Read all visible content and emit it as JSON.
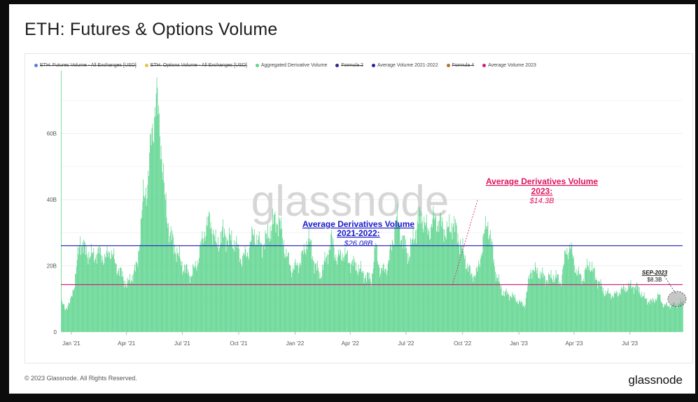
{
  "page": {
    "title": "ETH: Futures & Options Volume",
    "copyright": "© 2023 Glassnode. All Rights Reserved.",
    "brand": "glassnode",
    "watermark": "glassnode"
  },
  "legend": [
    {
      "label": "ETH: Futures Volume - All Exchanges [USD]",
      "color": "#5b7fd6",
      "disabled": true
    },
    {
      "label": "ETH: Options Volume - All Exchanges [USD]",
      "color": "#e8c14a",
      "disabled": true
    },
    {
      "label": "Aggregated Derivative Volume",
      "color": "#5fd58f",
      "disabled": false
    },
    {
      "label": "Formula 2",
      "color": "#2a2a8a",
      "disabled": true
    },
    {
      "label": "Average Volume 2021-2022",
      "color": "#1f1fa0",
      "disabled": false
    },
    {
      "label": "Formula 4",
      "color": "#b5702e",
      "disabled": true
    },
    {
      "label": "Average Volume 2023",
      "color": "#d11a7f",
      "disabled": false
    }
  ],
  "annotations": {
    "avg2122": {
      "line1": "Average Derivatives Volume",
      "line2": "2021-2022:",
      "value": "$26.08B"
    },
    "avg23": {
      "line1": "Average Derivatives Volume",
      "line2": "2023:",
      "value": "$14.3B"
    },
    "sep23": {
      "label": "SEP-2023",
      "value": "$8.3B"
    }
  },
  "chart_data": {
    "type": "bar",
    "y_ticks": [
      "0",
      "20B",
      "40B",
      "60B"
    ],
    "x_ticks": [
      "Jan '21",
      "Apr '21",
      "Jul '21",
      "Oct '21",
      "Jan '22",
      "Apr '22",
      "Jul '22",
      "Oct '22",
      "Jan '23",
      "Apr '23",
      "Jul '23"
    ],
    "ylim": [
      0,
      80
    ],
    "x_range": [
      "2020-12-15",
      "2023-09-25"
    ],
    "reference_lines": [
      {
        "name": "Average Volume 2021-2022",
        "value": 26.08,
        "color": "#2c2cc0"
      },
      {
        "name": "Average Volume 2023",
        "value": 14.3,
        "color": "#d11a7f"
      }
    ],
    "series": [
      {
        "name": "Aggregated Derivative Volume",
        "color": "#5fd58f",
        "unit": "B USD",
        "points": [
          [
            "2020-12-15",
            9
          ],
          [
            "2020-12-22",
            7
          ],
          [
            "2020-12-30",
            9
          ],
          [
            "2021-01-06",
            15
          ],
          [
            "2021-01-15",
            28
          ],
          [
            "2021-01-25",
            24
          ],
          [
            "2021-02-05",
            23
          ],
          [
            "2021-02-15",
            24
          ],
          [
            "2021-02-25",
            22
          ],
          [
            "2021-03-05",
            25
          ],
          [
            "2021-03-15",
            20
          ],
          [
            "2021-03-25",
            17
          ],
          [
            "2021-04-01",
            14
          ],
          [
            "2021-04-10",
            17
          ],
          [
            "2021-04-18",
            20
          ],
          [
            "2021-04-28",
            40
          ],
          [
            "2021-05-05",
            45
          ],
          [
            "2021-05-12",
            60
          ],
          [
            "2021-05-19",
            71
          ],
          [
            "2021-05-26",
            60
          ],
          [
            "2021-06-02",
            40
          ],
          [
            "2021-06-10",
            30
          ],
          [
            "2021-06-20",
            25
          ],
          [
            "2021-07-01",
            20
          ],
          [
            "2021-07-15",
            17
          ],
          [
            "2021-07-25",
            21
          ],
          [
            "2021-08-05",
            30
          ],
          [
            "2021-08-15",
            34
          ],
          [
            "2021-08-25",
            26
          ],
          [
            "2021-09-05",
            30
          ],
          [
            "2021-09-15",
            28
          ],
          [
            "2021-09-25",
            27
          ],
          [
            "2021-10-05",
            22
          ],
          [
            "2021-10-15",
            24
          ],
          [
            "2021-10-25",
            30
          ],
          [
            "2021-11-05",
            26
          ],
          [
            "2021-11-15",
            28
          ],
          [
            "2021-11-25",
            33
          ],
          [
            "2021-12-05",
            34
          ],
          [
            "2021-12-15",
            25
          ],
          [
            "2021-12-25",
            19
          ],
          [
            "2022-01-05",
            20
          ],
          [
            "2022-01-15",
            24
          ],
          [
            "2022-01-22",
            29
          ],
          [
            "2022-02-01",
            21
          ],
          [
            "2022-02-10",
            17
          ],
          [
            "2022-02-20",
            22
          ],
          [
            "2022-03-01",
            28
          ],
          [
            "2022-03-10",
            22
          ],
          [
            "2022-03-20",
            24
          ],
          [
            "2022-04-01",
            21
          ],
          [
            "2022-04-10",
            20
          ],
          [
            "2022-04-25",
            17
          ],
          [
            "2022-05-05",
            16
          ],
          [
            "2022-05-12",
            26
          ],
          [
            "2022-05-20",
            18
          ],
          [
            "2022-06-01",
            20
          ],
          [
            "2022-06-15",
            34
          ],
          [
            "2022-06-25",
            28
          ],
          [
            "2022-07-05",
            23
          ],
          [
            "2022-07-15",
            30
          ],
          [
            "2022-07-25",
            36
          ],
          [
            "2022-08-05",
            30
          ],
          [
            "2022-08-15",
            34
          ],
          [
            "2022-08-25",
            33
          ],
          [
            "2022-09-05",
            30
          ],
          [
            "2022-09-15",
            33
          ],
          [
            "2022-09-25",
            28
          ],
          [
            "2022-10-05",
            22
          ],
          [
            "2022-10-15",
            17
          ],
          [
            "2022-10-25",
            18
          ],
          [
            "2022-11-01",
            25
          ],
          [
            "2022-11-10",
            34
          ],
          [
            "2022-11-18",
            25
          ],
          [
            "2022-11-25",
            17
          ],
          [
            "2022-12-05",
            12
          ],
          [
            "2022-12-20",
            11
          ],
          [
            "2023-01-01",
            9
          ],
          [
            "2023-01-10",
            8
          ],
          [
            "2023-01-20",
            19
          ],
          [
            "2023-02-01",
            18
          ],
          [
            "2023-02-15",
            16
          ],
          [
            "2023-03-01",
            17
          ],
          [
            "2023-03-10",
            15
          ],
          [
            "2023-03-18",
            24
          ],
          [
            "2023-03-25",
            26
          ],
          [
            "2023-04-05",
            18
          ],
          [
            "2023-04-15",
            16
          ],
          [
            "2023-04-25",
            21
          ],
          [
            "2023-05-05",
            17
          ],
          [
            "2023-05-20",
            12
          ],
          [
            "2023-06-05",
            11
          ],
          [
            "2023-06-20",
            13
          ],
          [
            "2023-07-05",
            14
          ],
          [
            "2023-07-15",
            13
          ],
          [
            "2023-07-25",
            10
          ],
          [
            "2023-08-05",
            9
          ],
          [
            "2023-08-17",
            11
          ],
          [
            "2023-08-25",
            8
          ],
          [
            "2023-09-05",
            8
          ],
          [
            "2023-09-15",
            8.3
          ],
          [
            "2023-09-25",
            9
          ]
        ]
      }
    ]
  }
}
